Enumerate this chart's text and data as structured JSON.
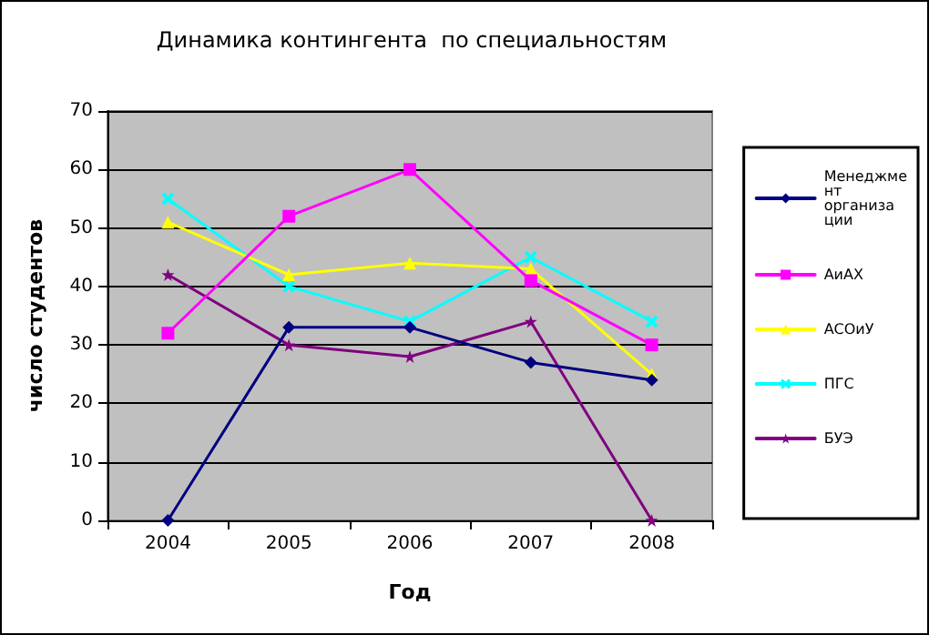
{
  "chart_data": {
    "type": "line",
    "title": "Динамика контингента  по специальностям",
    "xlabel": "Год",
    "ylabel": "число студентов",
    "categories": [
      "2004",
      "2005",
      "2006",
      "2007",
      "2008"
    ],
    "series": [
      {
        "name": "Менеджмент организации",
        "color": "#000080",
        "marker": "diamond",
        "values": [
          0,
          33,
          33,
          27,
          24
        ]
      },
      {
        "name": "АиАХ",
        "color": "#ff00ff",
        "marker": "square",
        "values": [
          32,
          52,
          60,
          41,
          30
        ]
      },
      {
        "name": "АСОиУ",
        "color": "#ffff00",
        "marker": "triangle",
        "values": [
          51,
          42,
          44,
          43,
          25
        ]
      },
      {
        "name": "ПГС",
        "color": "#00ffff",
        "marker": "cross",
        "values": [
          55,
          40,
          34,
          45,
          34
        ]
      },
      {
        "name": "БУЭ",
        "color": "#800080",
        "marker": "star",
        "values": [
          42,
          30,
          28,
          34,
          0
        ]
      }
    ],
    "ylim": [
      0,
      70
    ],
    "yticks": [
      0,
      10,
      20,
      30,
      40,
      50,
      60,
      70
    ],
    "grid": "y",
    "legend": "right"
  }
}
